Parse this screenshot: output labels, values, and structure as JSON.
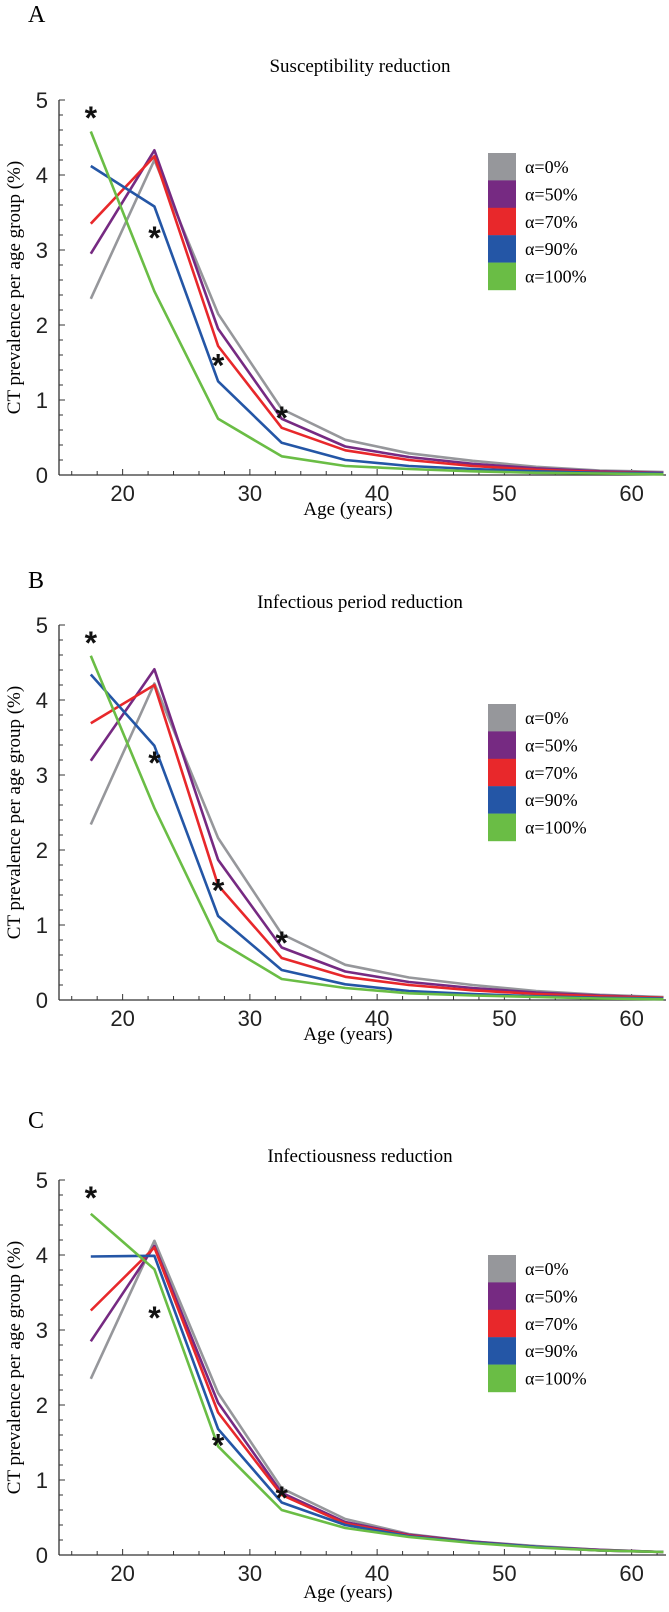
{
  "chart_data": [
    {
      "panel_label": "A",
      "type": "line",
      "title": "Susceptibility reduction",
      "xlabel": "Age (years)",
      "ylabel": "CT prevalence per age group (%)",
      "xlim": [
        15,
        62.7
      ],
      "ylim": [
        0,
        5
      ],
      "xticks": [
        20,
        30,
        40,
        50,
        60
      ],
      "yticks": [
        0,
        1,
        2,
        3,
        4,
        5
      ],
      "grid": false,
      "legend_position": "right",
      "x": [
        17.5,
        22.5,
        27.5,
        32.5,
        37.5,
        42.5,
        47.5,
        52.5,
        57.5,
        62.5
      ],
      "series": [
        {
          "name": "α=0%",
          "color": "#96979b",
          "values": [
            2.35,
            4.2,
            2.15,
            0.88,
            0.47,
            0.29,
            0.19,
            0.11,
            0.06,
            0.04
          ]
        },
        {
          "name": "α=50%",
          "color": "#762a82",
          "values": [
            2.95,
            4.33,
            1.95,
            0.75,
            0.38,
            0.24,
            0.15,
            0.09,
            0.05,
            0.03
          ]
        },
        {
          "name": "α=70%",
          "color": "#e8282b",
          "values": [
            3.35,
            4.25,
            1.72,
            0.63,
            0.33,
            0.2,
            0.12,
            0.07,
            0.04,
            0.02
          ]
        },
        {
          "name": "α=90%",
          "color": "#2456a6",
          "values": [
            4.12,
            3.58,
            1.25,
            0.43,
            0.2,
            0.12,
            0.08,
            0.05,
            0.03,
            0.02
          ]
        },
        {
          "name": "α=100%",
          "color": "#6abd45",
          "values": [
            4.58,
            2.45,
            0.75,
            0.25,
            0.12,
            0.08,
            0.05,
            0.03,
            0.02,
            0.01
          ]
        }
      ],
      "markers": {
        "symbol": "*",
        "points": [
          [
            17.5,
            4.8
          ],
          [
            22.5,
            3.2
          ],
          [
            27.5,
            1.5
          ],
          [
            32.5,
            0.8
          ]
        ]
      }
    },
    {
      "panel_label": "B",
      "type": "line",
      "title": "Infectious period reduction",
      "xlabel": "Age (years)",
      "ylabel": "CT prevalence per age group (%)",
      "xlim": [
        15,
        62.7
      ],
      "ylim": [
        0,
        5
      ],
      "xticks": [
        20,
        30,
        40,
        50,
        60
      ],
      "yticks": [
        0,
        1,
        2,
        3,
        4,
        5
      ],
      "grid": false,
      "legend_position": "right",
      "x": [
        17.5,
        22.5,
        27.5,
        32.5,
        37.5,
        42.5,
        47.5,
        52.5,
        57.5,
        62.5
      ],
      "series": [
        {
          "name": "α=0%",
          "color": "#96979b",
          "values": [
            2.34,
            4.22,
            2.16,
            0.88,
            0.47,
            0.3,
            0.2,
            0.12,
            0.07,
            0.04
          ]
        },
        {
          "name": "α=50%",
          "color": "#762a82",
          "values": [
            3.19,
            4.41,
            1.87,
            0.7,
            0.38,
            0.24,
            0.16,
            0.1,
            0.06,
            0.03
          ]
        },
        {
          "name": "α=70%",
          "color": "#e8282b",
          "values": [
            3.69,
            4.2,
            1.53,
            0.56,
            0.31,
            0.2,
            0.13,
            0.08,
            0.05,
            0.03
          ]
        },
        {
          "name": "α=90%",
          "color": "#2456a6",
          "values": [
            4.34,
            3.39,
            1.12,
            0.4,
            0.21,
            0.12,
            0.08,
            0.05,
            0.03,
            0.02
          ]
        },
        {
          "name": "α=100%",
          "color": "#6abd45",
          "values": [
            4.59,
            2.56,
            0.79,
            0.28,
            0.16,
            0.09,
            0.06,
            0.04,
            0.02,
            0.01
          ]
        }
      ],
      "markers": {
        "symbol": "*",
        "points": [
          [
            17.5,
            4.8
          ],
          [
            22.5,
            3.2
          ],
          [
            27.5,
            1.5
          ],
          [
            32.5,
            0.8
          ]
        ]
      }
    },
    {
      "panel_label": "C",
      "type": "line",
      "title": "Infectiousness reduction",
      "xlabel": "Age (years)",
      "ylabel": "CT prevalence per age group (%)",
      "xlim": [
        15,
        62.7
      ],
      "ylim": [
        0,
        5
      ],
      "xticks": [
        20,
        30,
        40,
        50,
        60
      ],
      "yticks": [
        0,
        1,
        2,
        3,
        4,
        5
      ],
      "grid": false,
      "legend_position": "right",
      "x": [
        17.5,
        22.5,
        27.5,
        32.5,
        37.5,
        42.5,
        47.5,
        52.5,
        57.5,
        62.5
      ],
      "series": [
        {
          "name": "α=0%",
          "color": "#96979b",
          "values": [
            2.35,
            4.19,
            2.16,
            0.89,
            0.48,
            0.28,
            0.18,
            0.12,
            0.07,
            0.04
          ]
        },
        {
          "name": "α=50%",
          "color": "#762a82",
          "values": [
            2.85,
            4.12,
            2.03,
            0.83,
            0.44,
            0.27,
            0.18,
            0.11,
            0.07,
            0.04
          ]
        },
        {
          "name": "α=70%",
          "color": "#e8282b",
          "values": [
            3.26,
            4.1,
            1.9,
            0.8,
            0.42,
            0.26,
            0.17,
            0.11,
            0.06,
            0.04
          ]
        },
        {
          "name": "α=90%",
          "color": "#2456a6",
          "values": [
            3.98,
            3.99,
            1.68,
            0.7,
            0.4,
            0.25,
            0.17,
            0.11,
            0.06,
            0.04
          ]
        },
        {
          "name": "α=100%",
          "color": "#6abd45",
          "values": [
            4.55,
            3.81,
            1.45,
            0.6,
            0.36,
            0.24,
            0.16,
            0.1,
            0.06,
            0.04
          ]
        }
      ],
      "markers": {
        "symbol": "*",
        "points": [
          [
            17.5,
            4.8
          ],
          [
            22.5,
            3.2
          ],
          [
            27.5,
            1.5
          ],
          [
            32.5,
            0.8
          ]
        ]
      }
    }
  ]
}
